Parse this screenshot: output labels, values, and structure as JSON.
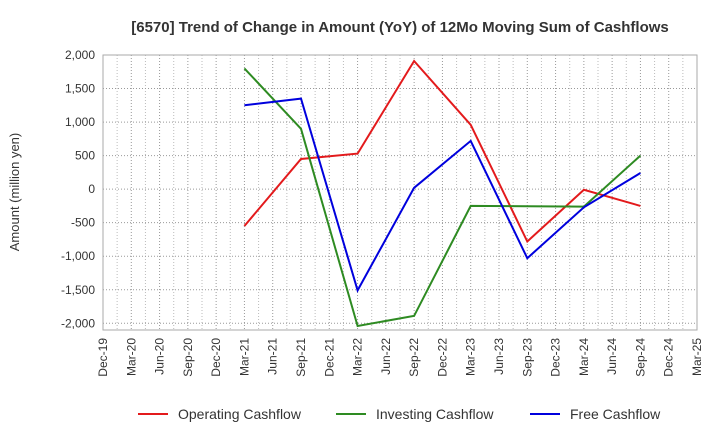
{
  "chart_data": {
    "type": "line",
    "title": "[6570]  Trend of Change in Amount (YoY) of 12Mo Moving Sum of Cashflows",
    "ylabel": "Amount (million yen)",
    "xlabel": "",
    "ylim": [
      -2100,
      2000
    ],
    "yticks": [
      2000,
      1500,
      1000,
      500,
      0,
      -500,
      -1000,
      -1500,
      -2000
    ],
    "ytick_labels": [
      "2,000",
      "1,500",
      "1,000",
      "500",
      "0",
      "-500",
      "-1,000",
      "-1,500",
      "-2,000"
    ],
    "categories": [
      "Dec-19",
      "Mar-20",
      "Jun-20",
      "Sep-20",
      "Dec-20",
      "Mar-21",
      "Jun-21",
      "Sep-21",
      "Dec-21",
      "Mar-22",
      "Jun-22",
      "Sep-22",
      "Dec-22",
      "Mar-23",
      "Jun-23",
      "Sep-23",
      "Dec-23",
      "Mar-24",
      "Jun-24",
      "Sep-24",
      "Dec-24",
      "Mar-25"
    ],
    "grid": true,
    "legend_position": "bottom",
    "series": [
      {
        "name": "Operating Cashflow",
        "color": "#e31a1c",
        "points": [
          {
            "x": "Mar-21",
            "y": -550
          },
          {
            "x": "Sep-21",
            "y": 450
          },
          {
            "x": "Mar-22",
            "y": 530
          },
          {
            "x": "Sep-22",
            "y": 1910
          },
          {
            "x": "Mar-23",
            "y": 960
          },
          {
            "x": "Sep-23",
            "y": -780
          },
          {
            "x": "Mar-24",
            "y": -10
          },
          {
            "x": "Sep-24",
            "y": -250
          }
        ]
      },
      {
        "name": "Investing Cashflow",
        "color": "#2e8b22",
        "points": [
          {
            "x": "Mar-21",
            "y": 1800
          },
          {
            "x": "Sep-21",
            "y": 900
          },
          {
            "x": "Mar-22",
            "y": -2040
          },
          {
            "x": "Sep-22",
            "y": -1890
          },
          {
            "x": "Mar-23",
            "y": -250
          },
          {
            "x": "Sep-23",
            "y": -255
          },
          {
            "x": "Mar-24",
            "y": -260
          },
          {
            "x": "Sep-24",
            "y": 500
          }
        ]
      },
      {
        "name": "Free Cashflow",
        "color": "#0000dd",
        "points": [
          {
            "x": "Mar-21",
            "y": 1250
          },
          {
            "x": "Sep-21",
            "y": 1350
          },
          {
            "x": "Mar-22",
            "y": -1510
          },
          {
            "x": "Sep-22",
            "y": 20
          },
          {
            "x": "Mar-23",
            "y": 720
          },
          {
            "x": "Sep-23",
            "y": -1030
          },
          {
            "x": "Mar-24",
            "y": -270
          },
          {
            "x": "Sep-24",
            "y": 240
          }
        ]
      }
    ]
  }
}
